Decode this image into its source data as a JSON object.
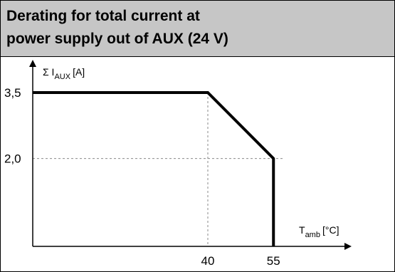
{
  "header": {
    "title_line1": "Derating for total current at",
    "title_line2": "power supply out of AUX (24 V)"
  },
  "chart_data": {
    "type": "line",
    "title": "Derating for total current at power supply out of AUX (24 V)",
    "ylabel": {
      "symbol": "Σ I",
      "sub": "AUX",
      "unit": "[A]"
    },
    "xlabel": {
      "symbol": "T",
      "sub": "amb",
      "unit": "[°C]"
    },
    "x_ticks": [
      {
        "value": 40,
        "label": "40"
      },
      {
        "value": 55,
        "label": "55"
      }
    ],
    "y_ticks": [
      {
        "value": 3.5,
        "label": "3,5"
      },
      {
        "value": 2.0,
        "label": "2,0"
      }
    ],
    "series": [
      {
        "x": [
          0,
          40,
          55,
          55
        ],
        "y": [
          3.5,
          3.5,
          2.0,
          0
        ]
      }
    ],
    "grid": "dashed reference lines at x=40 and y=2.0",
    "line_color": "#000000",
    "grid_color": "#8a8a8a"
  }
}
